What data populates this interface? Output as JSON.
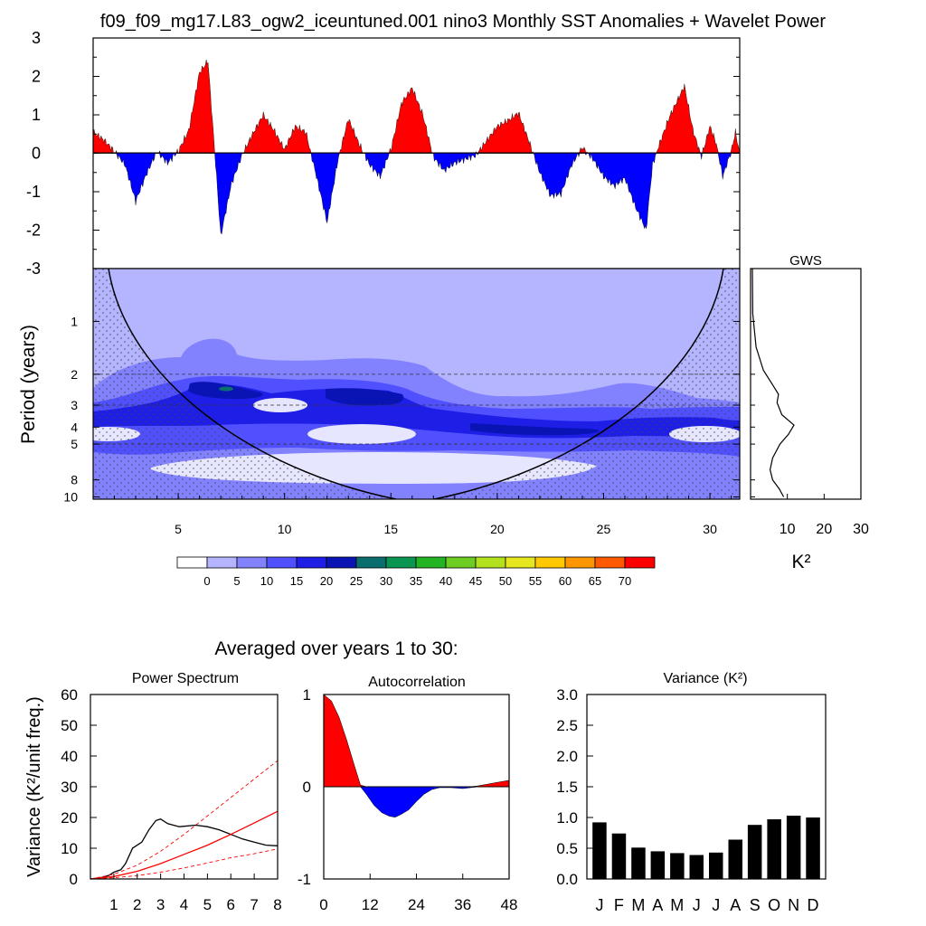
{
  "title": "f09_f09_mg17.L83_ogw2_iceuntuned.001 nino3 Monthly SST Anomalies + Wavelet Power",
  "colors": {
    "positive": "#ff0000",
    "negative": "#0000ff",
    "palette": [
      "#ffffff",
      "#b4b4ff",
      "#8282ff",
      "#5050ff",
      "#1e1ee6",
      "#0a14b4",
      "#0a6e6e",
      "#0a9650",
      "#23b423",
      "#6ecd23",
      "#b4e11e",
      "#e6e61e",
      "#ffc800",
      "#ff9600",
      "#ff5a00",
      "#ff0000"
    ]
  },
  "chart_data": [
    {
      "id": "sst",
      "type": "area",
      "title": "Monthly SST Anomalies",
      "ylim": [
        -3,
        3
      ],
      "yticks": [
        "3",
        "2",
        "1",
        "0",
        "-1",
        "-2",
        "-3"
      ],
      "ytick_values": [
        3,
        2,
        1,
        0,
        -1,
        -2,
        -3
      ],
      "xlim": [
        1,
        31.4
      ],
      "anchors": [
        [
          1,
          0.55
        ],
        [
          1.5,
          0.35
        ],
        [
          2,
          0.05
        ],
        [
          2.5,
          -0.3
        ],
        [
          3,
          -1.25
        ],
        [
          3.5,
          -0.55
        ],
        [
          4,
          0.05
        ],
        [
          4.5,
          -0.25
        ],
        [
          5,
          0.05
        ],
        [
          5.5,
          0.6
        ],
        [
          6,
          2.1
        ],
        [
          6.4,
          2.4
        ],
        [
          6.8,
          -0.6
        ],
        [
          7,
          -2.15
        ],
        [
          7.5,
          -0.8
        ],
        [
          8,
          -0.05
        ],
        [
          8.5,
          0.5
        ],
        [
          9,
          1.0
        ],
        [
          9.5,
          0.6
        ],
        [
          10,
          0.1
        ],
        [
          10.5,
          0.7
        ],
        [
          11,
          0.55
        ],
        [
          11.5,
          -0.6
        ],
        [
          12,
          -1.8
        ],
        [
          12.5,
          -0.2
        ],
        [
          13,
          0.9
        ],
        [
          13.5,
          0.25
        ],
        [
          14,
          -0.3
        ],
        [
          14.5,
          -0.6
        ],
        [
          15,
          0.1
        ],
        [
          15.5,
          1.3
        ],
        [
          16,
          1.7
        ],
        [
          16.5,
          1.0
        ],
        [
          17,
          -0.1
        ],
        [
          17.5,
          -0.45
        ],
        [
          18,
          -0.25
        ],
        [
          18.5,
          -0.15
        ],
        [
          19,
          -0.05
        ],
        [
          20,
          0.7
        ],
        [
          20.5,
          0.85
        ],
        [
          21,
          1.05
        ],
        [
          21.5,
          0.3
        ],
        [
          22,
          -0.5
        ],
        [
          22.5,
          -1.1
        ],
        [
          23,
          -1.05
        ],
        [
          23.5,
          -0.3
        ],
        [
          24,
          0.15
        ],
        [
          24.5,
          -0.15
        ],
        [
          25,
          -0.6
        ],
        [
          25.5,
          -0.85
        ],
        [
          26,
          -0.65
        ],
        [
          26.5,
          -1.4
        ],
        [
          27,
          -2.0
        ],
        [
          27.3,
          -0.3
        ],
        [
          27.6,
          0.2
        ],
        [
          28.1,
          0.95
        ],
        [
          28.8,
          1.75
        ],
        [
          29.2,
          0.6
        ],
        [
          29.6,
          -0.1
        ],
        [
          30,
          0.7
        ],
        [
          30.3,
          0.25
        ],
        [
          30.6,
          -0.6
        ],
        [
          31,
          0.05
        ],
        [
          31.2,
          0.55
        ],
        [
          31.4,
          0.0
        ]
      ]
    },
    {
      "id": "wavelet",
      "type": "heatmap",
      "ylabel": "Period (years)",
      "yticks": [
        "1",
        "2",
        "3",
        "4",
        "5",
        "8",
        "10"
      ],
      "ytick_values": [
        1,
        2,
        3,
        4,
        5,
        8,
        10
      ],
      "xticks": [
        "5",
        "10",
        "15",
        "20",
        "25",
        "30"
      ],
      "xtick_values": [
        5,
        10,
        15,
        20,
        25,
        30
      ],
      "xlim": [
        1,
        31.4
      ],
      "ylim": [
        0.5,
        10.3
      ],
      "dashed_periods": [
        2,
        3,
        5
      ]
    },
    {
      "id": "gws",
      "type": "line",
      "title": "GWS",
      "xlabel": "K²",
      "xticks": [
        "10",
        "20",
        "30"
      ],
      "xtick_values": [
        10,
        20,
        30
      ],
      "xlim": [
        0,
        30
      ],
      "points": [
        [
          0.5,
          0.5
        ],
        [
          0.6,
          0.9
        ],
        [
          1.5,
          1.4
        ],
        [
          3.5,
          1.9
        ],
        [
          6,
          2.3
        ],
        [
          7.6,
          2.6
        ],
        [
          7.2,
          2.9
        ],
        [
          8.5,
          3.4
        ],
        [
          11.8,
          3.9
        ],
        [
          10.3,
          4.4
        ],
        [
          8,
          5
        ],
        [
          6,
          6
        ],
        [
          5.3,
          7
        ],
        [
          6,
          8
        ],
        [
          7.8,
          9
        ],
        [
          9,
          10
        ]
      ]
    },
    {
      "id": "power_spectrum",
      "type": "line",
      "title": "Power Spectrum",
      "ylabel": "Variance (K²/unit freq.)",
      "yticks": [
        "60",
        "50",
        "40",
        "30",
        "20",
        "10",
        "0"
      ],
      "ytick_values": [
        60,
        50,
        40,
        30,
        20,
        10,
        0
      ],
      "xticks": [
        "1",
        "2",
        "3",
        "4",
        "5",
        "6",
        "7",
        "8"
      ],
      "xtick_values": [
        1,
        2,
        3,
        4,
        5,
        6,
        7,
        8
      ],
      "xlim": [
        0,
        8
      ],
      "ylim": [
        0,
        60
      ],
      "series": [
        {
          "name": "spectrum",
          "color": "#000000",
          "points": [
            [
              0,
              0
            ],
            [
              0.5,
              0.5
            ],
            [
              0.8,
              1.2
            ],
            [
              1,
              2.2
            ],
            [
              1.3,
              3
            ],
            [
              1.5,
              5
            ],
            [
              1.8,
              10
            ],
            [
              2.2,
              12
            ],
            [
              2.5,
              16
            ],
            [
              2.8,
              19
            ],
            [
              3,
              19.5
            ],
            [
              3.3,
              18
            ],
            [
              3.8,
              17
            ],
            [
              4.5,
              17.5
            ],
            [
              5,
              17
            ],
            [
              5.5,
              16
            ],
            [
              6,
              14.5
            ],
            [
              6.5,
              13
            ],
            [
              7,
              12
            ],
            [
              7.5,
              11
            ],
            [
              8,
              10.8
            ]
          ]
        },
        {
          "name": "red noise",
          "color": "#ff0000",
          "points": [
            [
              0,
              0
            ],
            [
              1,
              0.8
            ],
            [
              2,
              2.5
            ],
            [
              3,
              5
            ],
            [
              4,
              8
            ],
            [
              5,
              11
            ],
            [
              6,
              14.5
            ],
            [
              7,
              18.2
            ],
            [
              8,
              22
            ]
          ]
        },
        {
          "name": "upper bound",
          "color": "#ff0000",
          "dash": true,
          "points": [
            [
              0,
              0
            ],
            [
              1,
              1.5
            ],
            [
              2,
              4.5
            ],
            [
              3,
              9
            ],
            [
              4,
              14.5
            ],
            [
              5,
              20.5
            ],
            [
              6,
              26.5
            ],
            [
              7,
              32.5
            ],
            [
              8,
              38.5
            ]
          ]
        },
        {
          "name": "lower bound",
          "color": "#ff0000",
          "dash": true,
          "points": [
            [
              0,
              0
            ],
            [
              1,
              0.4
            ],
            [
              2,
              1.1
            ],
            [
              3,
              2.2
            ],
            [
              4,
              3.6
            ],
            [
              5,
              5.2
            ],
            [
              6,
              6.9
            ],
            [
              7,
              8.2
            ],
            [
              8,
              9.8
            ]
          ]
        }
      ]
    },
    {
      "id": "autocorrelation",
      "type": "area",
      "title": "Autocorrelation",
      "yticks": [
        "1",
        "0",
        "-1"
      ],
      "ytick_values": [
        1,
        0,
        -1
      ],
      "xticks": [
        "0",
        "12",
        "24",
        "36",
        "48"
      ],
      "xtick_values": [
        0,
        12,
        24,
        36,
        48
      ],
      "xlim": [
        0,
        48
      ],
      "ylim": [
        -1,
        1
      ],
      "points": [
        [
          0,
          1
        ],
        [
          2,
          0.93
        ],
        [
          4,
          0.75
        ],
        [
          6,
          0.5
        ],
        [
          8,
          0.22
        ],
        [
          9.5,
          0.02
        ],
        [
          11,
          -0.08
        ],
        [
          13,
          -0.2
        ],
        [
          15,
          -0.28
        ],
        [
          17,
          -0.32
        ],
        [
          18.5,
          -0.33
        ],
        [
          20,
          -0.3
        ],
        [
          22,
          -0.25
        ],
        [
          24,
          -0.16
        ],
        [
          26,
          -0.08
        ],
        [
          28,
          -0.03
        ],
        [
          30,
          -0.01
        ],
        [
          33,
          -0.01
        ],
        [
          36,
          -0.02
        ],
        [
          38,
          -0.01
        ],
        [
          40,
          0.01
        ],
        [
          44,
          0.04
        ],
        [
          48,
          0.07
        ]
      ]
    },
    {
      "id": "monthly_variance",
      "type": "bar",
      "title": "Variance (K²)",
      "categories": [
        "J",
        "F",
        "M",
        "A",
        "M",
        "J",
        "J",
        "A",
        "S",
        "O",
        "N",
        "D"
      ],
      "values": [
        0.92,
        0.74,
        0.51,
        0.45,
        0.42,
        0.39,
        0.43,
        0.64,
        0.88,
        0.97,
        1.03,
        1.0
      ],
      "yticks": [
        "3.0",
        "2.5",
        "2.0",
        "1.5",
        "1.0",
        "0.5",
        "0.0"
      ],
      "ytick_values": [
        3.0,
        2.5,
        2.0,
        1.5,
        1.0,
        0.5,
        0.0
      ],
      "ylim": [
        0,
        3
      ]
    }
  ],
  "colorbar": {
    "labels": [
      "0",
      "5",
      "10",
      "15",
      "20",
      "25",
      "30",
      "35",
      "40",
      "45",
      "50",
      "55",
      "60",
      "65",
      "70"
    ]
  },
  "averaged_label": "Averaged over years 1 to 30:"
}
